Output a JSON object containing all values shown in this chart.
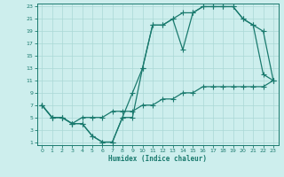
{
  "xlabel": "Humidex (Indice chaleur)",
  "bg_color": "#cdeeed",
  "grid_color": "#aad8d5",
  "line_color": "#1a7a6e",
  "xlim": [
    -0.5,
    23.5
  ],
  "ylim": [
    0.5,
    23.5
  ],
  "xticks": [
    0,
    1,
    2,
    3,
    4,
    5,
    6,
    7,
    8,
    9,
    10,
    11,
    12,
    13,
    14,
    15,
    16,
    17,
    18,
    19,
    20,
    21,
    22,
    23
  ],
  "yticks": [
    1,
    3,
    5,
    7,
    9,
    11,
    13,
    15,
    17,
    19,
    21,
    23
  ],
  "line1_x": [
    0,
    1,
    2,
    3,
    4,
    5,
    6,
    7,
    8,
    9,
    10,
    11,
    12,
    13,
    14,
    15,
    16,
    17,
    18,
    19,
    20,
    21,
    22,
    23
  ],
  "line1_y": [
    7,
    5,
    5,
    4,
    4,
    2,
    1,
    1,
    5,
    9,
    13,
    20,
    20,
    21,
    16,
    22,
    23,
    23,
    23,
    23,
    21,
    20,
    12,
    11
  ],
  "line2_x": [
    0,
    1,
    2,
    3,
    4,
    5,
    6,
    7,
    8,
    9,
    10,
    11,
    12,
    13,
    14,
    15,
    16,
    17,
    18,
    19,
    20,
    21,
    22,
    23
  ],
  "line2_y": [
    7,
    5,
    5,
    4,
    4,
    2,
    1,
    1,
    5,
    5,
    13,
    20,
    20,
    21,
    22,
    22,
    23,
    23,
    23,
    23,
    21,
    20,
    19,
    11
  ],
  "line3_x": [
    0,
    1,
    2,
    3,
    4,
    5,
    6,
    7,
    8,
    9,
    10,
    11,
    12,
    13,
    14,
    15,
    16,
    17,
    18,
    19,
    20,
    21,
    22,
    23
  ],
  "line3_y": [
    7,
    5,
    5,
    4,
    5,
    5,
    5,
    6,
    6,
    6,
    7,
    7,
    8,
    8,
    9,
    9,
    10,
    10,
    10,
    10,
    10,
    10,
    10,
    11
  ]
}
